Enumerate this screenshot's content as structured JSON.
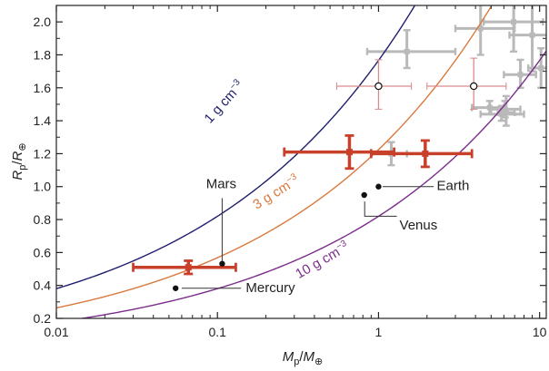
{
  "chart_data": {
    "type": "scatter",
    "x_scale": "log",
    "xlim": [
      0.01,
      11
    ],
    "ylim": [
      0.2,
      2.1
    ],
    "x_ticks": [
      {
        "value": 0.01,
        "label": "0.01"
      },
      {
        "value": 0.1,
        "label": "0.1"
      },
      {
        "value": 1,
        "label": "1"
      },
      {
        "value": 10,
        "label": "10"
      }
    ],
    "y_ticks": [
      {
        "value": 0.2,
        "label": "0.2"
      },
      {
        "value": 0.4,
        "label": "0.4"
      },
      {
        "value": 0.6,
        "label": "0.6"
      },
      {
        "value": 0.8,
        "label": "0.8"
      },
      {
        "value": 1.0,
        "label": "1.0"
      },
      {
        "value": 1.2,
        "label": "1.2"
      },
      {
        "value": 1.4,
        "label": "1.4"
      },
      {
        "value": 1.6,
        "label": "1.6"
      },
      {
        "value": 1.8,
        "label": "1.8"
      },
      {
        "value": 2.0,
        "label": "2.0"
      }
    ],
    "xlabel": {
      "main": "M",
      "sub": "p",
      "sep": "/",
      "main2": "M",
      "sub2": "⊕"
    },
    "ylabel": {
      "main": "R",
      "sub": "p",
      "sep": "/",
      "main2": "R",
      "sub2": "⊕"
    },
    "density_curves": [
      {
        "label_num": "1",
        "label_unit": "g cm",
        "label_exp": "−3",
        "density": 1,
        "color": "#1f1f6e",
        "label_at": [
          0.09,
          1.38
        ],
        "label_angle": -48
      },
      {
        "label_num": "3",
        "label_unit": "g cm",
        "label_exp": "−3",
        "density": 3,
        "color": "#d9793d",
        "label_at": [
          0.175,
          0.86
        ],
        "label_angle": -32
      },
      {
        "label_num": "10",
        "label_unit": "g cm",
        "label_exp": "−3",
        "density": 10,
        "color": "#7b2d8b",
        "label_at": [
          0.32,
          0.44
        ],
        "label_angle": -30
      }
    ],
    "planets": [
      {
        "name": "Mercury",
        "x": 0.055,
        "y": 0.383,
        "label_at": [
          0.15,
          0.36
        ],
        "leader": [
          [
            0.06,
            0.383
          ],
          [
            0.14,
            0.383
          ]
        ]
      },
      {
        "name": "Mars",
        "x": 0.107,
        "y": 0.532,
        "label_at": [
          0.085,
          0.99
        ],
        "leader": [
          [
            0.107,
            0.55
          ],
          [
            0.107,
            0.93
          ]
        ]
      },
      {
        "name": "Venus",
        "x": 0.815,
        "y": 0.949,
        "label_at": [
          1.35,
          0.74
        ],
        "leader": [
          [
            0.82,
            0.91
          ],
          [
            0.82,
            0.82
          ],
          [
            1.3,
            0.82
          ]
        ]
      },
      {
        "name": "Earth",
        "x": 1.0,
        "y": 1.0,
        "label_at": [
          2.3,
          0.98
        ],
        "leader": [
          [
            1.06,
            1.0
          ],
          [
            2.2,
            1.0
          ]
        ]
      }
    ],
    "highlighted_points": [
      {
        "x": 0.066,
        "y": 0.51,
        "x_err": [
          0.03,
          0.13
        ],
        "y_err": [
          0.47,
          0.55
        ]
      },
      {
        "x": 0.66,
        "y": 1.21,
        "x_err": [
          0.26,
          1.25
        ],
        "y_err": [
          1.11,
          1.31
        ]
      },
      {
        "x": 1.95,
        "y": 1.2,
        "x_err": [
          0.9,
          3.8
        ],
        "y_err": [
          1.12,
          1.28
        ]
      }
    ],
    "highlighted_color": "#c8402a",
    "open_points": [
      {
        "x": 1.0,
        "y": 1.61,
        "x_err": [
          0.55,
          1.6
        ],
        "y_err": [
          1.47,
          1.77
        ]
      },
      {
        "x": 3.9,
        "y": 1.61,
        "x_err": [
          2.0,
          6.2
        ],
        "y_err": [
          1.47,
          1.78
        ]
      }
    ],
    "open_color": "#d98a8a",
    "background_points": [
      {
        "x": 1.5,
        "y": 1.82,
        "x_err": [
          0.85,
          3.0
        ],
        "y_err": [
          1.72,
          1.95
        ]
      },
      {
        "x": 4.3,
        "y": 1.96,
        "x_err": [
          3.0,
          7.0
        ],
        "y_err": [
          1.8,
          2.12
        ]
      },
      {
        "x": 6.9,
        "y": 2.0,
        "x_err": [
          4.5,
          10.5
        ],
        "y_err": [
          1.82,
          2.12
        ]
      },
      {
        "x": 9.0,
        "y": 1.92,
        "x_err": [
          6.5,
          12.0
        ],
        "y_err": [
          1.7,
          2.12
        ]
      },
      {
        "x": 7.6,
        "y": 1.68,
        "x_err": [
          6.0,
          9.5
        ],
        "y_err": [
          1.6,
          1.77
        ]
      },
      {
        "x": 10.2,
        "y": 1.72,
        "x_err": [
          8.5,
          12.0
        ],
        "y_err": [
          1.6,
          1.84
        ]
      },
      {
        "x": 4.9,
        "y": 1.48,
        "x_err": [
          3.8,
          6.0
        ],
        "y_err": [
          1.44,
          1.52
        ]
      },
      {
        "x": 6.1,
        "y": 1.47,
        "x_err": [
          5.0,
          7.6
        ],
        "y_err": [
          1.42,
          1.52
        ]
      },
      {
        "x": 5.8,
        "y": 1.44,
        "x_err": [
          4.3,
          8.0
        ],
        "y_err": [
          1.4,
          1.49
        ]
      },
      {
        "x": 6.2,
        "y": 1.45,
        "x_err": [
          5.5,
          7.0
        ],
        "y_err": [
          1.37,
          1.55
        ]
      },
      {
        "x": 1.2,
        "y": 1.2,
        "x_err": [
          0.9,
          1.5
        ],
        "y_err": [
          1.13,
          1.27
        ]
      }
    ],
    "background_color": "#b9b9b9"
  }
}
